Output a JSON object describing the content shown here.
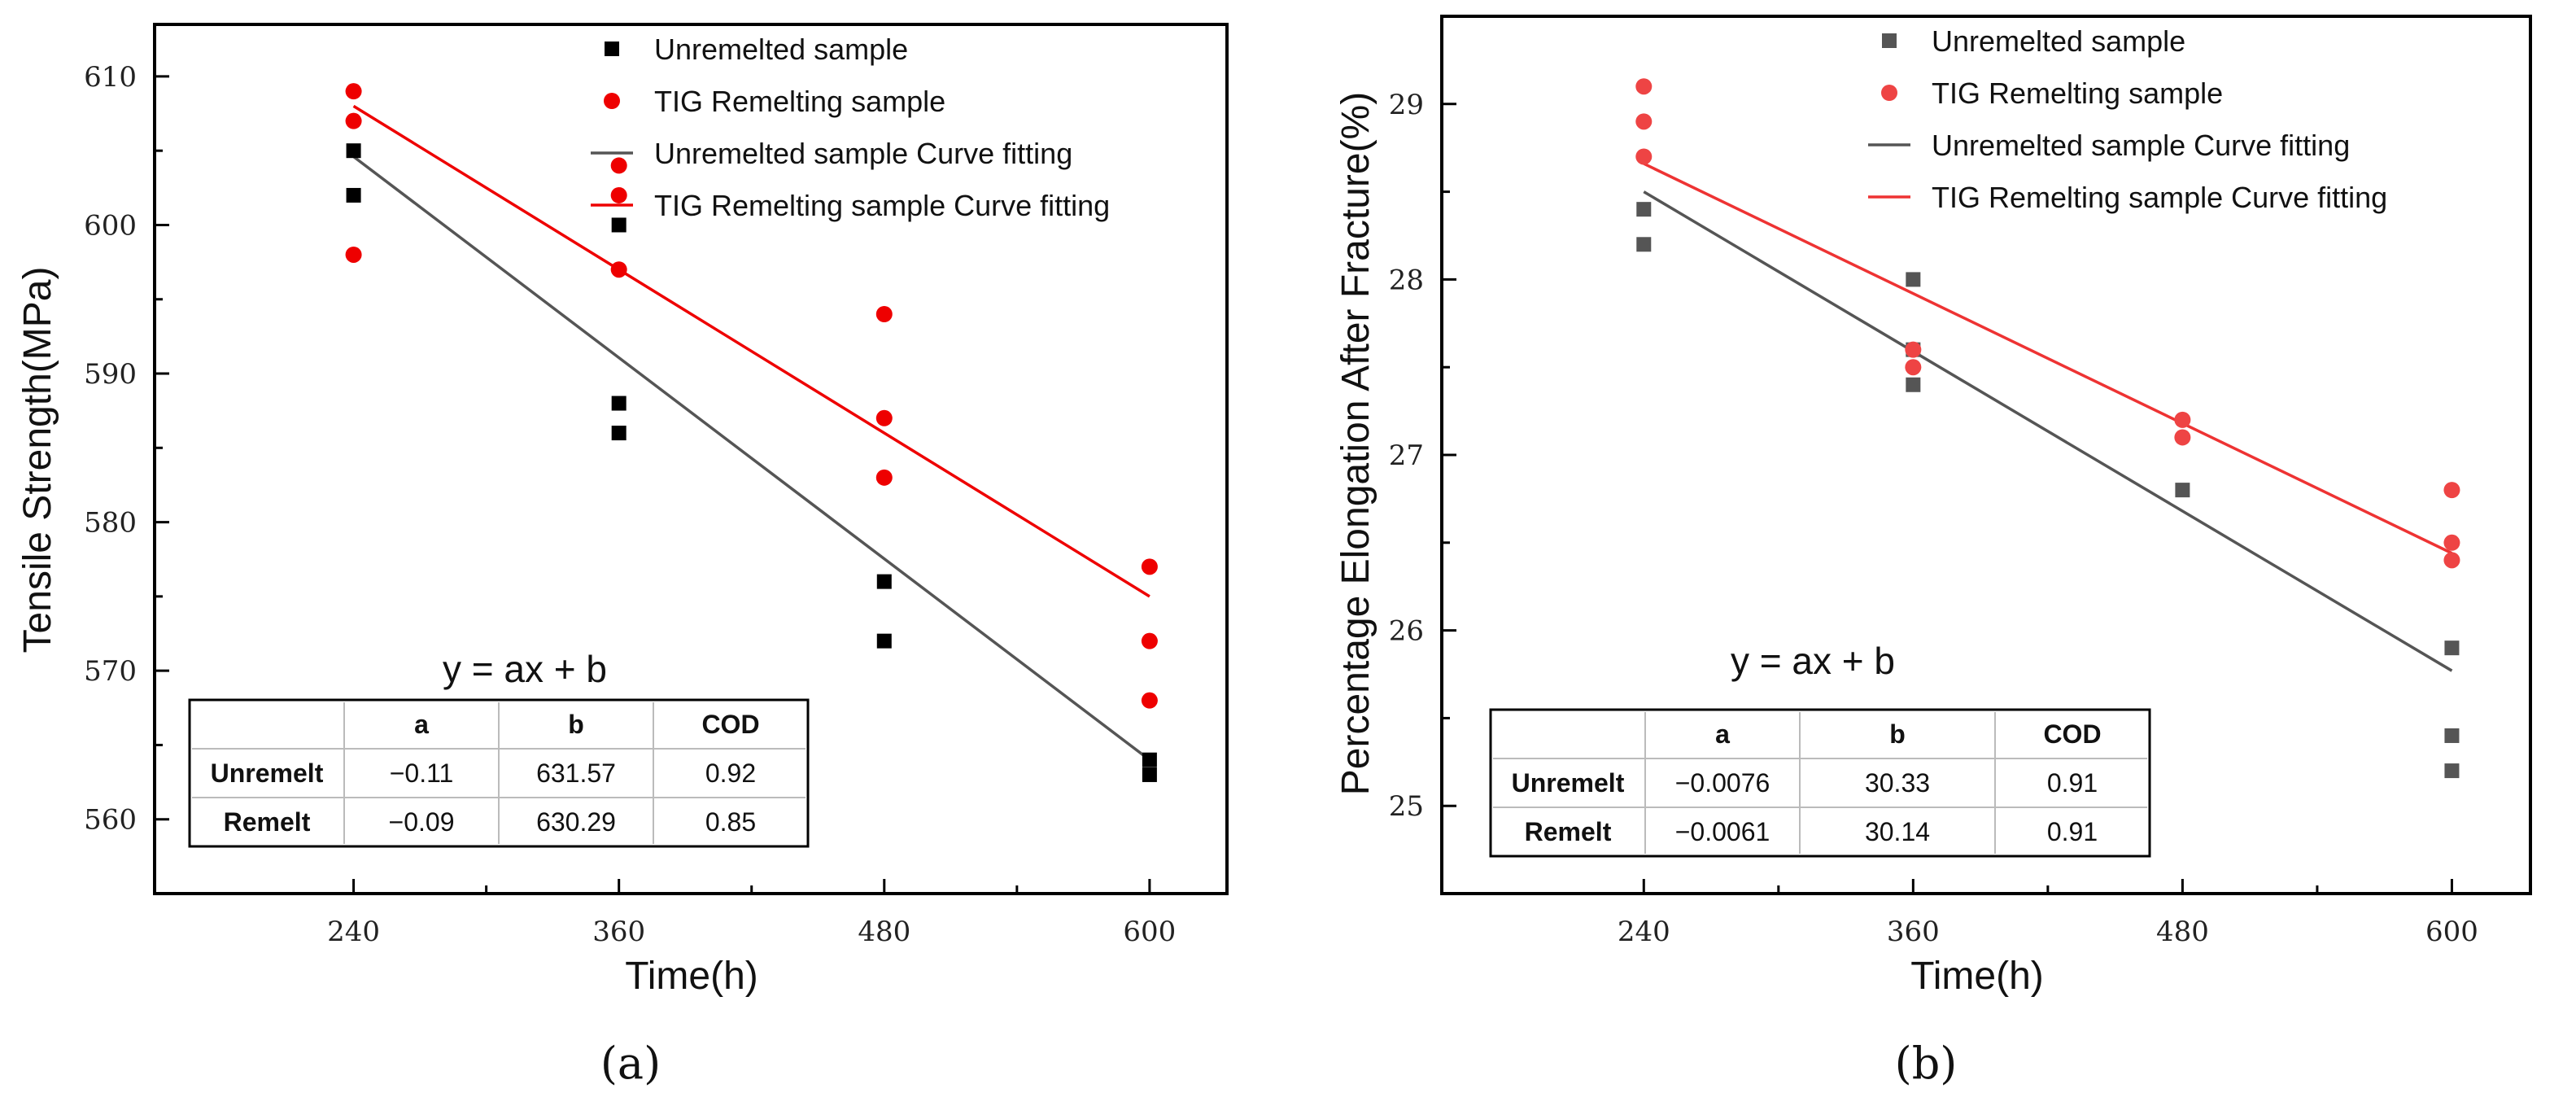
{
  "chart_data": [
    {
      "type": "scatter",
      "panel_label": "(a)",
      "xlabel": "Time(h)",
      "ylabel": "Tensile Strength(MPa)",
      "x_ticks": [
        240,
        360,
        480,
        600
      ],
      "y_ticks": [
        560,
        570,
        580,
        590,
        600,
        610
      ],
      "xlim": [
        150,
        635
      ],
      "ylim": [
        555,
        613.5
      ],
      "legend_position": "top-right",
      "series": [
        {
          "name": "Unremelted sample",
          "marker": "square",
          "color": "#000000",
          "points": [
            [
              240,
              605
            ],
            [
              240,
              602
            ],
            [
              360,
              600
            ],
            [
              360,
              588
            ],
            [
              360,
              586
            ],
            [
              480,
              576
            ],
            [
              480,
              572
            ],
            [
              600,
              564
            ],
            [
              600,
              563
            ]
          ]
        },
        {
          "name": "TIG Remelting sample",
          "marker": "circle",
          "color": "#ee0000",
          "points": [
            [
              240,
              609
            ],
            [
              240,
              607
            ],
            [
              240,
              598
            ],
            [
              360,
              604
            ],
            [
              360,
              602
            ],
            [
              360,
              597
            ],
            [
              480,
              594
            ],
            [
              480,
              587
            ],
            [
              480,
              583
            ],
            [
              600,
              577
            ],
            [
              600,
              572
            ],
            [
              600,
              568
            ]
          ]
        }
      ],
      "fits": [
        {
          "name": "Unremelted sample Curve fitting",
          "color": "#555555",
          "x": [
            240,
            600
          ],
          "y": [
            604.6,
            564
          ]
        },
        {
          "name": "TIG Remelting sample Curve fitting",
          "color": "#ee0000",
          "x": [
            240,
            600
          ],
          "y": [
            608,
            575
          ]
        }
      ],
      "equation": "y = ax + b",
      "table": {
        "headers": [
          "",
          "a",
          "b",
          "COD"
        ],
        "rows": [
          [
            "Unremelt",
            "−0.11",
            "631.57",
            "0.92"
          ],
          [
            "Remelt",
            "−0.09",
            "630.29",
            "0.85"
          ]
        ]
      }
    },
    {
      "type": "scatter",
      "panel_label": "(b)",
      "xlabel": "Time(h)",
      "ylabel": "Percentage Elongation After Fracture(%)",
      "x_ticks": [
        240,
        360,
        480,
        600
      ],
      "y_ticks": [
        25,
        26,
        27,
        28,
        29
      ],
      "xlim": [
        150,
        635
      ],
      "ylim": [
        24.5,
        29.5
      ],
      "legend_position": "top-right",
      "series": [
        {
          "name": "Unremelted sample",
          "marker": "square",
          "color": "#555555",
          "points": [
            [
              240,
              28.4
            ],
            [
              240,
              28.2
            ],
            [
              360,
              28.0
            ],
            [
              360,
              27.6
            ],
            [
              360,
              27.4
            ],
            [
              480,
              26.8
            ],
            [
              600,
              25.9
            ],
            [
              600,
              25.4
            ],
            [
              600,
              25.2
            ]
          ]
        },
        {
          "name": "TIG Remelting sample",
          "marker": "circle",
          "color": "#ee4444",
          "points": [
            [
              240,
              29.1
            ],
            [
              240,
              28.9
            ],
            [
              240,
              28.7
            ],
            [
              360,
              27.6
            ],
            [
              360,
              27.5
            ],
            [
              480,
              27.2
            ],
            [
              480,
              27.1
            ],
            [
              600,
              26.8
            ],
            [
              600,
              26.5
            ],
            [
              600,
              26.4
            ]
          ]
        }
      ],
      "fits": [
        {
          "name": "Unremelted sample Curve fitting",
          "color": "#555555",
          "x": [
            240,
            600
          ],
          "y": [
            28.5,
            25.77
          ]
        },
        {
          "name": "TIG Remelting sample Curve fitting",
          "color": "#ee3333",
          "x": [
            240,
            600
          ],
          "y": [
            28.66,
            26.44
          ]
        }
      ],
      "equation": "y = ax + b",
      "table": {
        "headers": [
          "",
          "a",
          "b",
          "COD"
        ],
        "rows": [
          [
            "Unremelt",
            "−0.0076",
            "30.33",
            "0.91"
          ],
          [
            "Remelt",
            "−0.0061",
            "30.14",
            "0.91"
          ]
        ]
      }
    }
  ]
}
